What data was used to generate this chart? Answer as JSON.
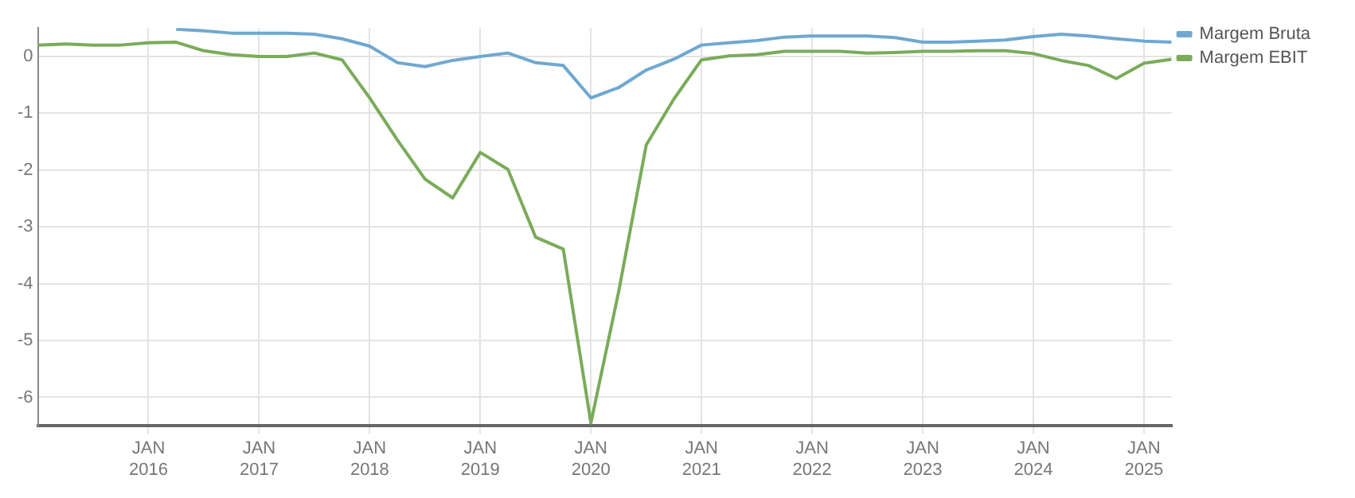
{
  "chart_data": {
    "type": "line",
    "x": [
      "2015-01",
      "2015-04",
      "2015-07",
      "2015-10",
      "2016-01",
      "2016-04",
      "2016-07",
      "2016-10",
      "2017-01",
      "2017-04",
      "2017-07",
      "2017-10",
      "2018-01",
      "2018-04",
      "2018-07",
      "2018-10",
      "2019-01",
      "2019-04",
      "2019-07",
      "2019-10",
      "2020-01",
      "2020-04",
      "2020-07",
      "2020-10",
      "2021-01",
      "2021-04",
      "2021-07",
      "2021-10",
      "2022-01",
      "2022-04",
      "2022-07",
      "2022-10",
      "2023-01",
      "2023-04",
      "2023-07",
      "2023-10",
      "2024-01",
      "2024-04",
      "2024-07",
      "2024-10",
      "2025-01",
      "2025-04"
    ],
    "series": [
      {
        "name": "Margem Bruta",
        "color": "#6fa8d0",
        "values": [
          null,
          null,
          null,
          null,
          null,
          0.48,
          0.45,
          0.41,
          0.41,
          0.41,
          0.39,
          0.31,
          0.18,
          -0.11,
          -0.18,
          -0.07,
          0.0,
          0.06,
          -0.11,
          -0.16,
          -0.73,
          -0.55,
          -0.24,
          -0.05,
          0.2,
          0.24,
          0.28,
          0.34,
          0.36,
          0.36,
          0.36,
          0.33,
          0.25,
          0.25,
          0.27,
          0.29,
          0.35,
          0.39,
          0.36,
          0.31,
          0.27,
          0.25
        ]
      },
      {
        "name": "Margem EBIT",
        "color": "#7aab5a",
        "values": [
          0.2,
          0.22,
          0.2,
          0.2,
          0.24,
          0.25,
          0.1,
          0.03,
          0.0,
          0.0,
          0.06,
          -0.06,
          -0.73,
          -1.47,
          -2.16,
          -2.49,
          -1.69,
          -1.99,
          -3.18,
          -3.39,
          -6.45,
          -4.15,
          -1.56,
          -0.75,
          -0.06,
          0.01,
          0.03,
          0.09,
          0.09,
          0.09,
          0.06,
          0.07,
          0.09,
          0.09,
          0.1,
          0.1,
          0.05,
          -0.07,
          -0.16,
          -0.39,
          -0.12,
          -0.05
        ]
      }
    ],
    "xlim": [
      "2015-01",
      "2025-04"
    ],
    "xticks": [
      {
        "value": "2016-01",
        "label": "JAN 2016"
      },
      {
        "value": "2017-01",
        "label": "JAN 2017"
      },
      {
        "value": "2018-01",
        "label": "JAN 2018"
      },
      {
        "value": "2019-01",
        "label": "JAN 2019"
      },
      {
        "value": "2020-01",
        "label": "JAN 2020"
      },
      {
        "value": "2021-01",
        "label": "JAN 2021"
      },
      {
        "value": "2022-01",
        "label": "JAN 2022"
      },
      {
        "value": "2023-01",
        "label": "JAN 2023"
      },
      {
        "value": "2024-01",
        "label": "JAN 2024"
      },
      {
        "value": "2025-01",
        "label": "JAN 2025"
      }
    ],
    "ylim": [
      -6.5,
      0.5
    ],
    "yticks": [
      -6,
      -5,
      -4,
      -3,
      -2,
      -1,
      0
    ],
    "grid": true,
    "legend": "top right",
    "marker": "none",
    "line_style": "solid"
  }
}
